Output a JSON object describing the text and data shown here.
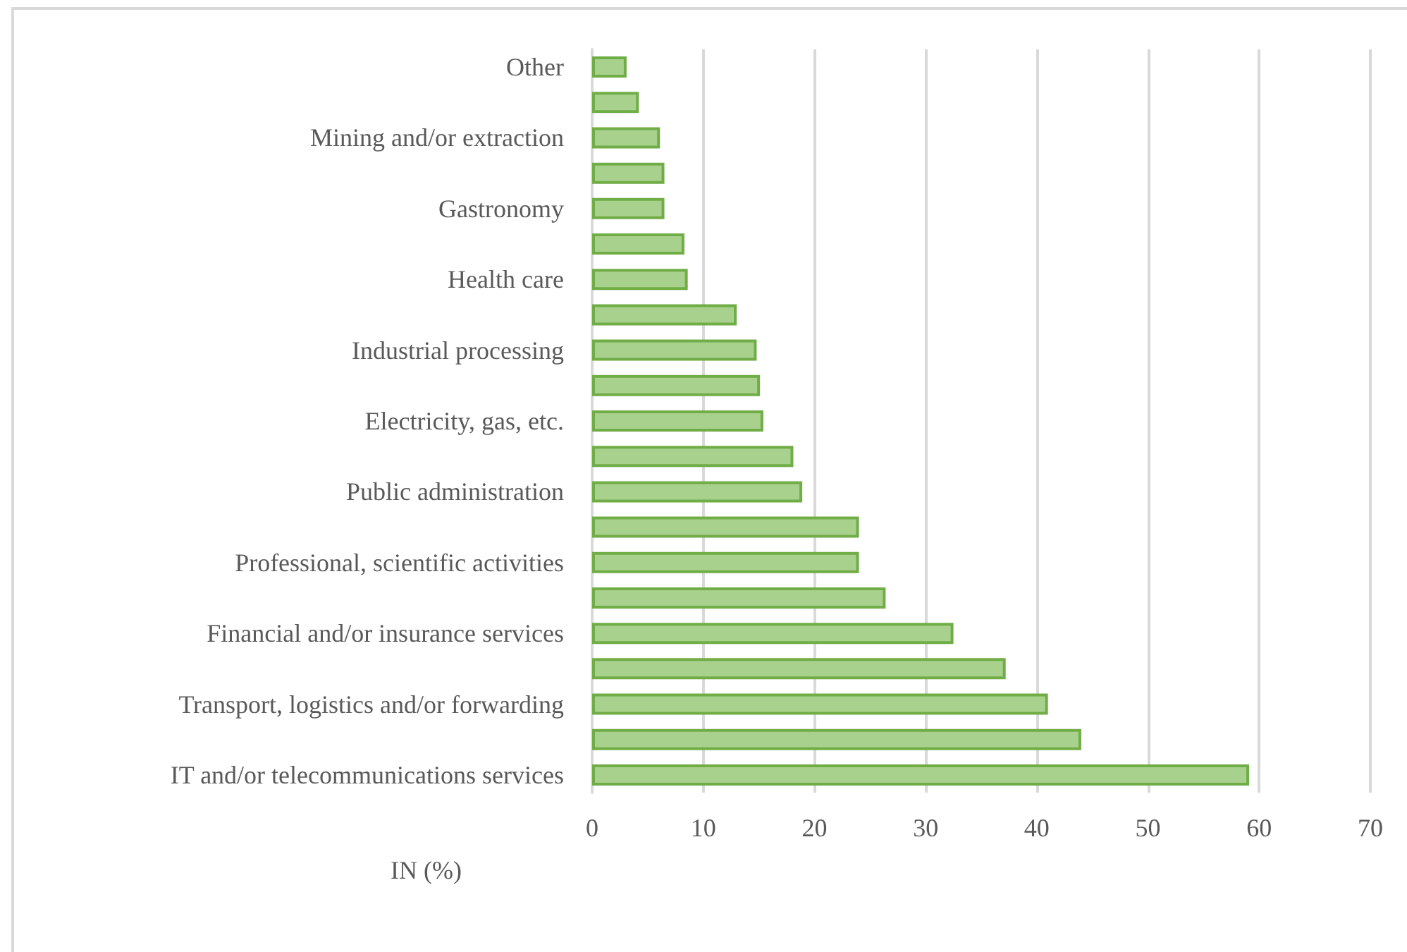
{
  "chart_data": {
    "type": "bar",
    "orientation": "horizontal",
    "xlabel": "IN (%)",
    "categories": [
      "Other",
      null,
      "Mining and/or extraction",
      null,
      "Gastronomy",
      null,
      "Health care",
      null,
      "Industrial processing",
      null,
      "Electricity, gas, etc.",
      null,
      "Public administration",
      null,
      "Professional, scientific activities",
      null,
      "Financial and/or insurance services",
      null,
      "Transport, logistics and/or forwarding",
      null,
      "IT and/or telecommunications services"
    ],
    "values": [
      3.1,
      4.2,
      6.1,
      6.5,
      6.5,
      8.3,
      8.6,
      13.0,
      14.8,
      15.1,
      15.4,
      18.1,
      18.9,
      24.0,
      24.0,
      26.4,
      32.5,
      37.2,
      41.0,
      44.0,
      59.1
    ],
    "color": "#a9d18e",
    "xlim": [
      0,
      70
    ],
    "xticks": [
      0,
      10,
      20,
      30,
      40,
      50,
      60,
      70
    ],
    "grid": "x"
  }
}
